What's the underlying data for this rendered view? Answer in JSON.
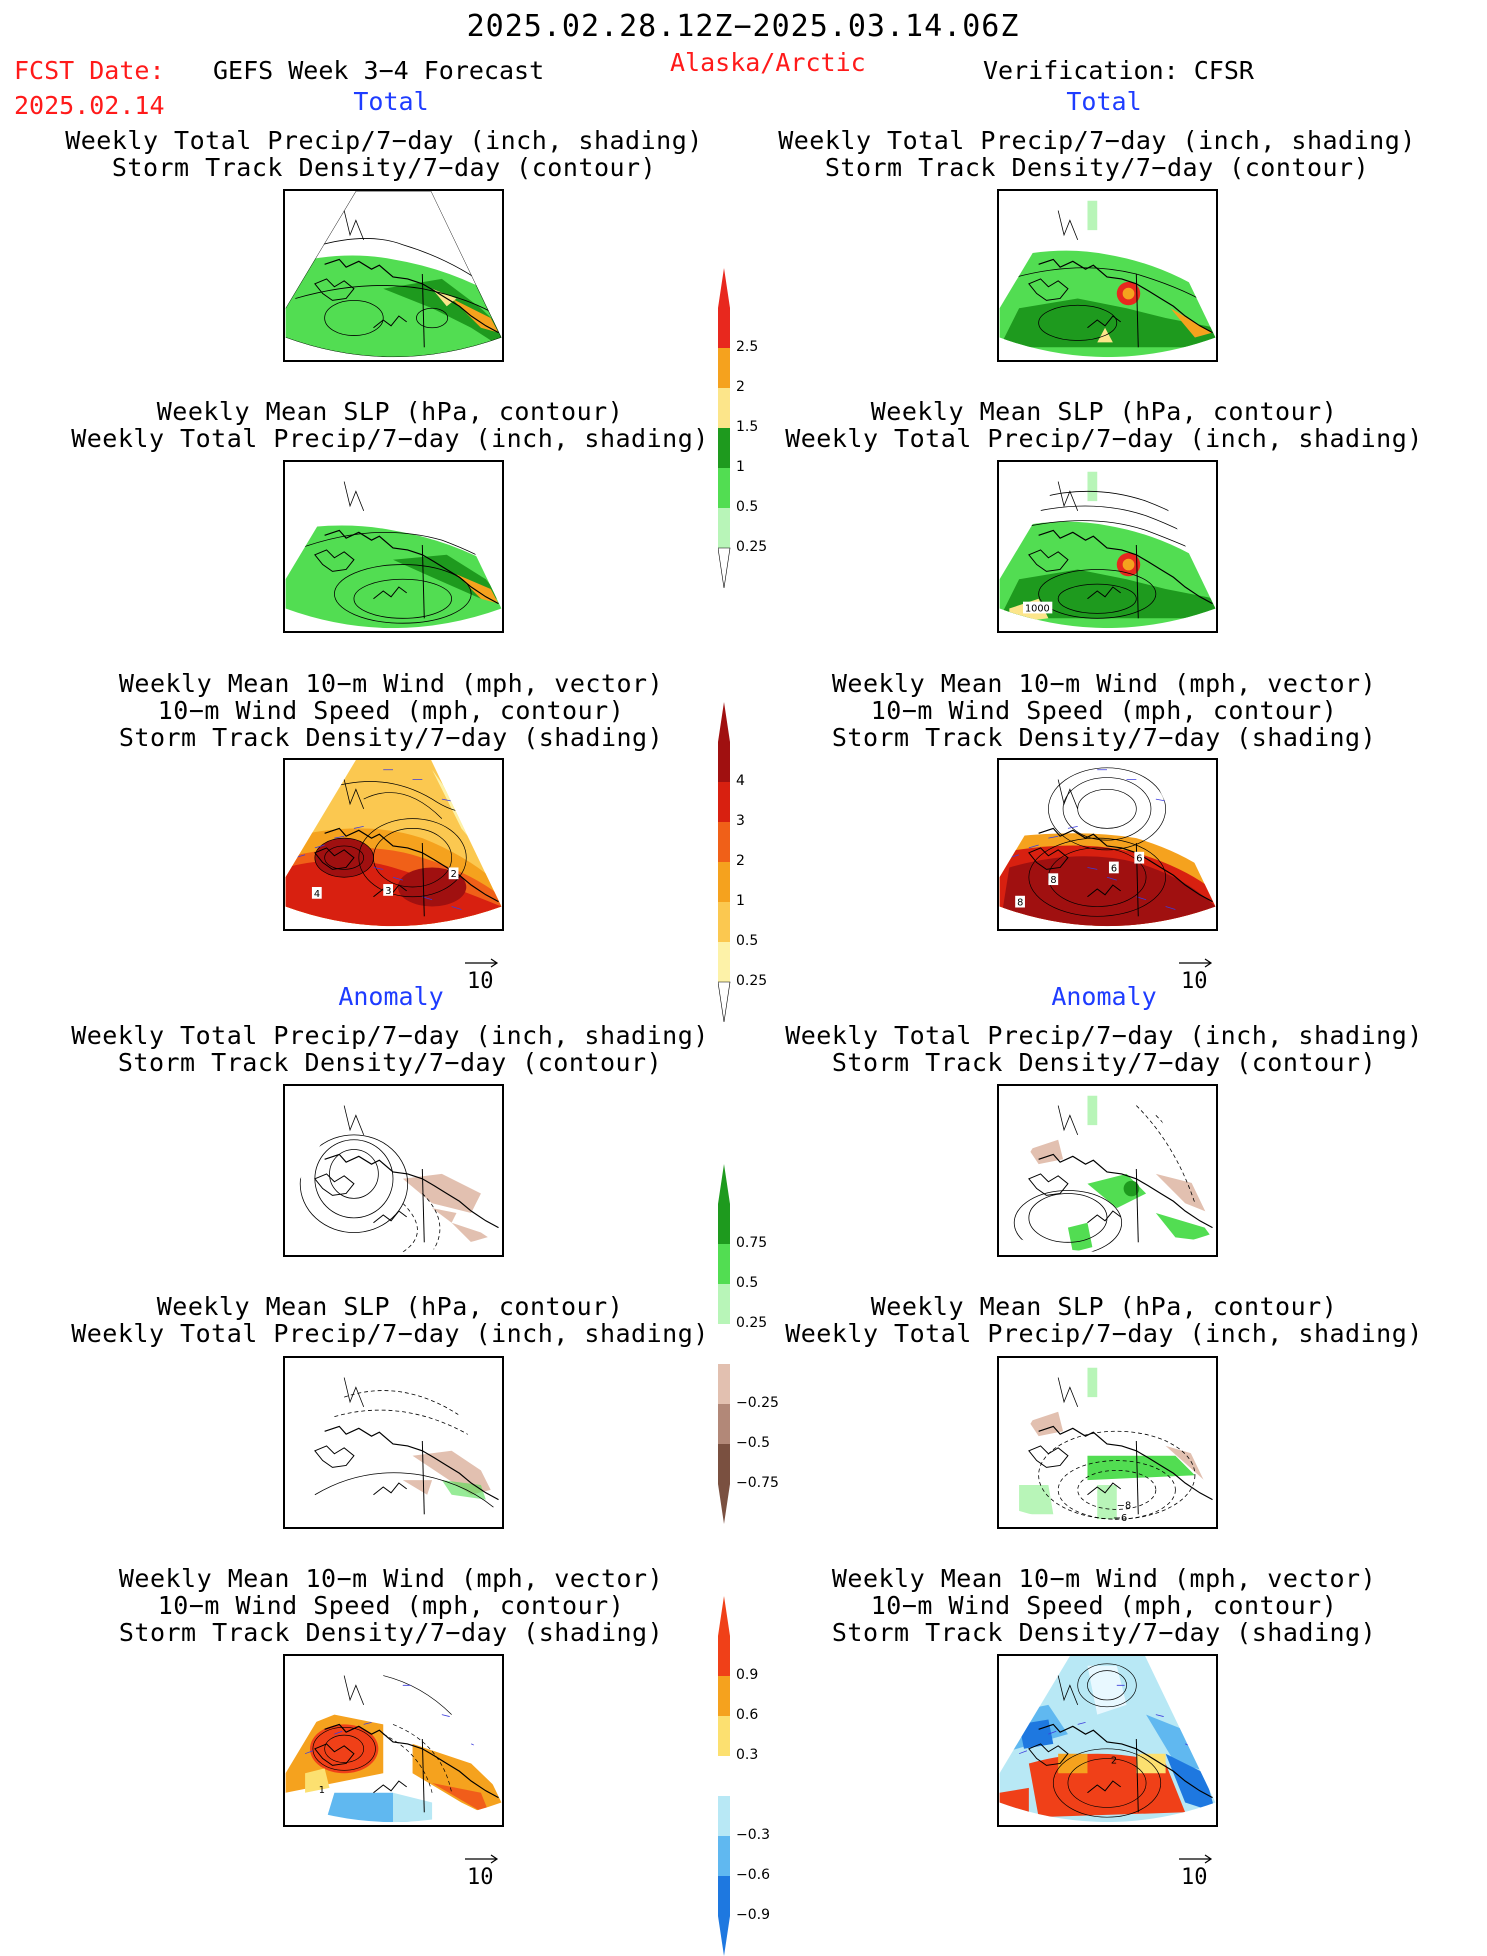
{
  "header": {
    "date_range": "2025.02.28.12Z−2025.03.14.06Z",
    "fcst_label": "FCST Date:",
    "fcst_date": "2025.02.14",
    "forecast_title": "GEFS Week 3−4 Forecast",
    "region": "Alaska/Arctic",
    "verification": "Verification: CFSR"
  },
  "sections": {
    "total": "Total",
    "anomaly": "Anomaly"
  },
  "panel_titles": {
    "precip_std": [
      "Weekly Total Precip/7−day (inch, shading)",
      "Storm Track Density/7−day (contour)"
    ],
    "slp_precip": [
      "Weekly Mean SLP (hPa, contour)",
      "Weekly Total Precip/7−day (inch, shading)"
    ],
    "wind_std": [
      "Weekly Mean 10−m Wind (mph, vector)",
      "10−m Wind Speed (mph, contour)",
      "Storm Track Density/7−day (shading)"
    ]
  },
  "vector_reference": "10",
  "contour_labels": {
    "verif_slp": "1000",
    "fcst_wind": [
      "4",
      "3",
      "2"
    ],
    "verif_wind": [
      "8",
      "8",
      "6",
      "6"
    ],
    "verif_slp_anom": [
      "−8",
      "−6"
    ],
    "fcst_wind_anom": [
      "1"
    ],
    "verif_wind_anom": [
      "2"
    ]
  },
  "colorbars": {
    "precip_total": {
      "labels": [
        "2.5",
        "2",
        "1.5",
        "1",
        "0.5",
        "0.25"
      ],
      "colors": [
        "#e8281e",
        "#f5a21e",
        "#fce58a",
        "#1e9a1e",
        "#52dd52",
        "#b8f5b8"
      ]
    },
    "std_total": {
      "labels": [
        "4",
        "3",
        "2",
        "1",
        "0.5",
        "0.25"
      ],
      "colors": [
        "#a01010",
        "#d82010",
        "#f06018",
        "#f5a21e",
        "#fbc850",
        "#fdf2a8"
      ]
    },
    "precip_anom": {
      "labels": [
        "0.75",
        "0.5",
        "0.25",
        "−0.25",
        "−0.5",
        "−0.75"
      ],
      "colors": [
        "#1e9a1e",
        "#52dd52",
        "#b8f5b8",
        "#ffffff",
        "#e2c0b0",
        "#b28878",
        "#7a5040"
      ]
    },
    "std_anom": {
      "labels": [
        "0.9",
        "0.6",
        "0.3",
        "−0.3",
        "−0.6",
        "−0.9"
      ],
      "colors": [
        "#f04018",
        "#f5a21e",
        "#fce070",
        "#ffffff",
        "#b8e8f5",
        "#60b8f0",
        "#1e78e0"
      ]
    }
  }
}
